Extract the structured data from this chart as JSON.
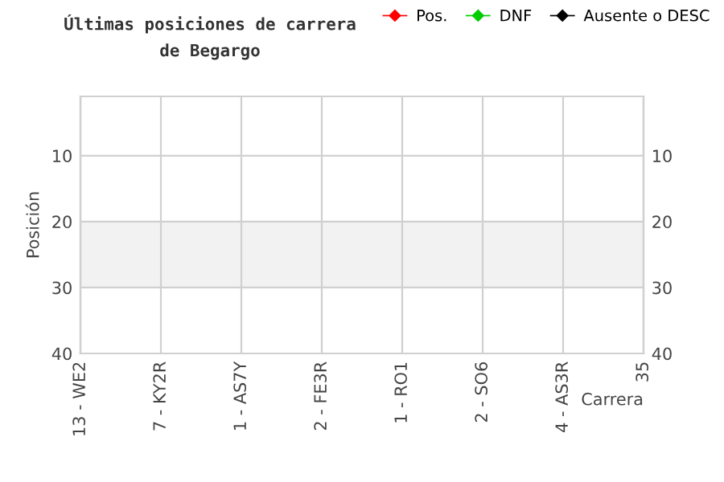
{
  "chart_data": {
    "type": "line",
    "title": "Últimas posiciones de carrera\nde Begargo",
    "xlabel": "Carrera",
    "ylabel": "Posición",
    "categories": [
      "13 - WE2",
      "7 - KY2R",
      "1 - AS7Y",
      "2 - FE3R",
      "1 - RO1",
      "2 - SO6",
      "4 - AS3R",
      "35"
    ],
    "series": [
      {
        "name": "Pos.",
        "color": "#ff0000",
        "values": [
          null,
          null,
          null,
          null,
          null,
          null,
          null,
          null
        ]
      },
      {
        "name": "DNF",
        "color": "#00cc00",
        "values": [
          null,
          null,
          null,
          null,
          null,
          null,
          null,
          null
        ]
      },
      {
        "name": "Ausente o DESC",
        "color": "#000000",
        "values": [
          null,
          null,
          null,
          null,
          null,
          null,
          null,
          null
        ]
      }
    ],
    "ylim": [
      40,
      1
    ],
    "yticks": [
      10,
      20,
      30,
      40
    ],
    "y2lim": [
      40,
      1
    ],
    "y2ticks": [
      10,
      20,
      30,
      40
    ],
    "bands": [
      {
        "axis": "y",
        "from": 20,
        "to": 30,
        "color": "#f2f2f2"
      }
    ],
    "grid": true,
    "legend": "top right",
    "marker": "diamond",
    "line_style": "solid"
  }
}
